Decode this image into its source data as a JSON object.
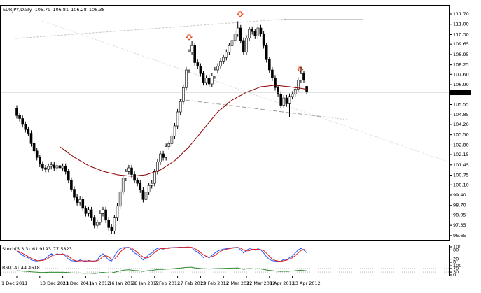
{
  "chart_data": {
    "type": "candlestick",
    "title": "EURJPY,Daily",
    "categories": [
      "1 Dec 2011",
      null,
      null,
      null,
      null,
      null,
      null,
      null,
      "13 Dec 2011",
      null,
      null,
      null,
      null,
      null,
      null,
      null,
      "23 Dec 2011",
      null,
      null,
      null,
      null,
      null,
      null,
      null,
      "4 Jan 2012",
      null,
      null,
      null,
      null,
      null,
      null,
      null,
      "16 Jan 2012",
      null,
      null,
      null,
      null,
      null,
      null,
      null,
      "26 Jan 2012",
      null,
      null,
      null,
      null,
      null,
      null,
      null,
      "7 Feb 2012",
      null,
      null,
      null,
      null,
      null,
      null,
      null,
      "17 Feb 2012",
      null,
      null,
      null,
      null,
      null,
      null,
      null,
      "29 Feb 2012",
      null,
      null,
      null,
      null,
      null,
      null,
      null,
      "12 Mar 2012",
      null,
      null,
      null,
      null,
      null,
      null,
      null,
      "22 Mar 2012",
      null,
      null,
      null,
      null,
      null,
      null,
      null,
      "3 Apr 2012",
      null,
      null,
      null,
      null,
      null,
      null,
      null,
      "13 Apr 2012",
      null,
      null,
      null,
      null,
      null
    ],
    "open": [
      105.3,
      104.8,
      104.6,
      104.2,
      103.85,
      103.6,
      102.9,
      102.4,
      101.95,
      101.5,
      101.25,
      101.15,
      101.35,
      101.45,
      101.25,
      101.4,
      101.25,
      101.35,
      101.0,
      100.4,
      99.8,
      99.25,
      98.9,
      99.1,
      98.5,
      98.15,
      98.4,
      97.85,
      97.35,
      97.55,
      98.15,
      98.4,
      97.7,
      97.2,
      96.95,
      97.85,
      98.65,
      99.6,
      100.55,
      101.0,
      101.25,
      100.8,
      100.4,
      100.2,
      99.75,
      99.1,
      99.6,
      100.05,
      100.2,
      101.0,
      101.65,
      102.2,
      101.95,
      102.7,
      102.9,
      103.4,
      104.1,
      105.05,
      105.75,
      106.7,
      107.9,
      109.1,
      109.55,
      108.4,
      108.15,
      107.65,
      107.05,
      107.35,
      106.95,
      107.5,
      107.9,
      108.15,
      108.5,
      108.75,
      109.1,
      109.55,
      109.9,
      110.35,
      110.75,
      109.9,
      109.1,
      110.05,
      110.65,
      110.5,
      110.2,
      110.75,
      110.35,
      109.55,
      108.6,
      107.9,
      107.35,
      106.7,
      106.25,
      105.5,
      106.0,
      105.6,
      106.1,
      106.25,
      106.6,
      107.2,
      107.65,
      106.79
    ],
    "high": [
      105.5,
      105.0,
      104.8,
      104.4,
      104.05,
      103.8,
      103.1,
      102.6,
      102.15,
      101.7,
      101.45,
      101.55,
      101.65,
      101.65,
      101.6,
      101.6,
      101.55,
      101.55,
      101.2,
      100.6,
      100.0,
      99.45,
      99.3,
      99.3,
      98.7,
      98.6,
      98.6,
      98.05,
      97.75,
      98.35,
      98.6,
      98.6,
      97.9,
      97.4,
      98.05,
      98.85,
      99.8,
      100.75,
      101.2,
      101.45,
      101.45,
      101.0,
      100.6,
      100.4,
      99.95,
      99.8,
      100.25,
      100.4,
      101.2,
      101.85,
      102.4,
      102.4,
      102.9,
      103.1,
      103.6,
      104.3,
      105.25,
      105.95,
      106.9,
      108.1,
      109.3,
      109.85,
      109.75,
      108.6,
      108.35,
      107.85,
      107.55,
      107.55,
      107.7,
      108.1,
      108.35,
      108.7,
      108.95,
      109.3,
      109.75,
      110.1,
      110.55,
      111.2,
      110.95,
      110.1,
      110.25,
      110.85,
      110.85,
      110.7,
      111.05,
      110.95,
      110.55,
      109.75,
      108.8,
      108.1,
      107.55,
      106.9,
      106.45,
      106.2,
      106.2,
      106.3,
      106.45,
      106.8,
      107.4,
      108.1,
      107.85,
      106.81
    ],
    "low": [
      104.6,
      104.4,
      104.0,
      103.65,
      103.4,
      102.7,
      102.2,
      101.75,
      101.3,
      101.05,
      100.95,
      100.95,
      101.15,
      101.05,
      101.05,
      101.05,
      101.05,
      100.8,
      100.2,
      99.6,
      99.05,
      98.7,
      98.7,
      98.3,
      97.95,
      97.95,
      97.65,
      97.15,
      97.15,
      97.35,
      97.95,
      97.5,
      97.0,
      96.75,
      96.75,
      97.65,
      98.45,
      99.4,
      100.35,
      100.8,
      100.6,
      100.2,
      100.0,
      99.55,
      98.9,
      98.9,
      99.4,
      99.85,
      100.0,
      100.8,
      101.45,
      101.75,
      101.75,
      102.5,
      102.7,
      103.2,
      103.9,
      104.85,
      105.55,
      106.5,
      107.7,
      108.9,
      108.2,
      107.95,
      107.45,
      106.85,
      106.85,
      106.75,
      106.75,
      107.3,
      107.7,
      107.95,
      108.3,
      108.55,
      108.9,
      109.35,
      109.7,
      110.15,
      109.7,
      108.9,
      108.9,
      109.85,
      110.3,
      110.0,
      110.0,
      110.15,
      109.35,
      108.4,
      107.7,
      107.15,
      106.5,
      106.05,
      105.3,
      105.3,
      105.4,
      104.7,
      105.9,
      106.05,
      106.4,
      107.0,
      107.0,
      106.28
    ],
    "close": [
      104.8,
      104.6,
      104.2,
      103.85,
      103.6,
      102.9,
      102.4,
      101.95,
      101.5,
      101.25,
      101.15,
      101.35,
      101.45,
      101.25,
      101.4,
      101.25,
      101.35,
      101.0,
      100.4,
      99.8,
      99.25,
      98.9,
      99.1,
      98.5,
      98.15,
      98.4,
      97.85,
      97.35,
      97.55,
      98.15,
      98.4,
      97.7,
      97.2,
      96.95,
      97.85,
      98.65,
      99.6,
      100.55,
      101.0,
      101.25,
      100.8,
      100.4,
      100.2,
      99.75,
      99.1,
      99.6,
      100.05,
      100.2,
      101.0,
      101.65,
      102.2,
      101.95,
      102.7,
      102.9,
      103.4,
      104.1,
      105.05,
      105.75,
      106.7,
      107.9,
      109.1,
      109.55,
      108.4,
      108.15,
      107.65,
      107.05,
      107.35,
      106.95,
      107.5,
      107.9,
      108.15,
      108.5,
      108.75,
      109.1,
      109.55,
      109.9,
      110.35,
      110.75,
      109.9,
      109.1,
      110.05,
      110.65,
      110.5,
      110.2,
      110.75,
      110.35,
      109.55,
      108.6,
      107.9,
      107.35,
      106.7,
      106.25,
      105.5,
      106.0,
      105.6,
      106.1,
      106.25,
      106.6,
      107.2,
      107.65,
      107.2,
      106.38
    ],
    "up_color": "#ffffff",
    "down_color": "#000000",
    "series": [
      {
        "color": "#8b0000",
        "values": [
          null,
          null,
          null,
          null,
          null,
          null,
          null,
          null,
          null,
          null,
          null,
          null,
          null,
          null,
          null,
          102.68,
          102.54,
          102.4,
          102.25,
          102.11,
          101.97,
          101.86,
          101.74,
          101.63,
          101.51,
          101.4,
          101.32,
          101.25,
          101.17,
          101.1,
          101.02,
          100.97,
          100.92,
          100.88,
          100.83,
          100.78,
          100.76,
          100.74,
          100.72,
          100.7,
          100.68,
          100.7,
          100.72,
          100.74,
          100.76,
          100.78,
          100.85,
          100.91,
          100.98,
          101.04,
          101.11,
          101.23,
          101.36,
          101.48,
          101.61,
          101.73,
          101.92,
          102.11,
          102.3,
          102.49,
          102.68,
          102.92,
          103.16,
          103.39,
          103.63,
          103.87,
          104.11,
          104.34,
          104.58,
          104.81,
          105.05,
          105.21,
          105.37,
          105.54,
          105.7,
          105.86,
          105.96,
          106.07,
          106.17,
          106.28,
          106.38,
          106.46,
          106.53,
          106.61,
          106.68,
          106.76,
          106.78,
          106.8,
          106.82,
          106.84,
          106.86,
          106.84,
          106.82,
          106.8,
          106.78,
          106.76,
          106.73,
          106.7,
          106.68,
          106.65,
          106.62,
          106.58
        ]
      }
    ],
    "ylim": [
      96.36,
      112.27
    ],
    "yticks": [
      {
        "value": 111.7,
        "label": "111.70"
      },
      {
        "value": 111,
        "label": "111.00"
      },
      {
        "value": 110.3,
        "label": "110.30"
      },
      109.65,
      108.95,
      108.25,
      {
        "value": 107.6,
        "label": "107.60"
      },
      {
        "value": 106.9,
        "label": "106.90"
      },
      105.55,
      104.85,
      {
        "value": 104.2,
        "label": "104.20"
      },
      {
        "value": 103.5,
        "label": "103.50"
      },
      {
        "value": 102.8,
        "label": "102.80"
      },
      102.15,
      101.45,
      100.75,
      {
        "value": 100.1,
        "label": "100.10"
      },
      {
        "value": 99.4,
        "label": "99.40"
      },
      {
        "value": 98.7,
        "label": "98.70"
      },
      98.05,
      97.35,
      96.65
    ],
    "indicators": [
      {
        "type": "line",
        "title": "Stoch(5,3,3)",
        "ylim": [
          0,
          100
        ],
        "yticks": [
          100,
          80,
          20,
          0
        ],
        "series": [
          {
            "color": "#1e5aff",
            "values": [
              70,
              60,
              45,
              35,
              28,
              15,
              10,
              8,
              12,
              15,
              25,
              40,
              55,
              45,
              55,
              50,
              55,
              40,
              20,
              10,
              8,
              5,
              15,
              8,
              5,
              12,
              8,
              5,
              15,
              40,
              55,
              35,
              15,
              8,
              40,
              70,
              88,
              95,
              96,
              97,
              80,
              60,
              50,
              35,
              15,
              30,
              50,
              60,
              80,
              90,
              93,
              85,
              92,
              94,
              95,
              96,
              97,
              98,
              97,
              98,
              98,
              95,
              75,
              65,
              50,
              30,
              38,
              28,
              45,
              60,
              72,
              80,
              85,
              88,
              92,
              94,
              96,
              97,
              80,
              60,
              78,
              88,
              85,
              78,
              88,
              80,
              60,
              35,
              18,
              10,
              8,
              6,
              5,
              20,
              15,
              30,
              40,
              60,
              80,
              90,
              78,
              61.9193
            ]
          },
          {
            "color": "#e02020",
            "values": [
              72,
              68,
              58,
              47,
              36,
              26,
              18,
              11,
              10,
              12,
              17,
              27,
              40,
              47,
              52,
              50,
              53,
              48,
              38,
              23,
              13,
              8,
              9,
              9,
              9,
              8,
              8,
              8,
              9,
              20,
              37,
              43,
              35,
              19,
              21,
              39,
              66,
              84,
              93,
              96,
              91,
              79,
              63,
              48,
              33,
              27,
              32,
              47,
              63,
              77,
              88,
              89,
              90,
              90,
              94,
              95,
              96,
              97,
              97,
              98,
              98,
              97,
              89,
              78,
              63,
              48,
              39,
              32,
              37,
              44,
              59,
              71,
              79,
              84,
              88,
              91,
              94,
              96,
              91,
              79,
              73,
              75,
              84,
              84,
              84,
              82,
              76,
              58,
              38,
              21,
              12,
              8,
              6,
              10,
              13,
              22,
              28,
              43,
              60,
              77,
              83,
              77.5823
            ]
          }
        ]
      },
      {
        "type": "line",
        "title": "RSI(14)",
        "ylim": [
          0,
          100
        ],
        "yticks": [
          100,
          70,
          30,
          0
        ],
        "series": [
          {
            "color": "#2e8b2e",
            "values": [
              45,
              44,
              41,
              39,
              37,
              33,
              31,
              29,
              27,
              26,
              26,
              28,
              29,
              28,
              29,
              28,
              29,
              27,
              24,
              21,
              19,
              18,
              21,
              18,
              17,
              19,
              17,
              15,
              18,
              24,
              27,
              23,
              20,
              19,
              28,
              36,
              44,
              51,
              54,
              56,
              52,
              48,
              46,
              43,
              38,
              43,
              47,
              48,
              54,
              58,
              61,
              59,
              63,
              64,
              66,
              69,
              72,
              75,
              78,
              81,
              83,
              84,
              76,
              74,
              70,
              66,
              67,
              64,
              66,
              68,
              69,
              70,
              71,
              72,
              73,
              74,
              75,
              76,
              68,
              61,
              66,
              69,
              67,
              65,
              68,
              65,
              59,
              53,
              49,
              46,
              42,
              40,
              36,
              40,
              38,
              41,
              42,
              45,
              49,
              52,
              48,
              44.4618
            ]
          }
        ]
      }
    ]
  }
}
